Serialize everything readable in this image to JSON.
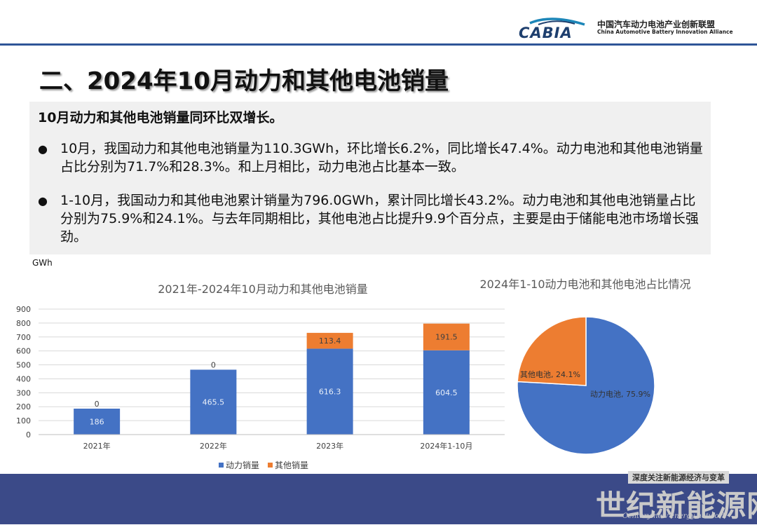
{
  "header": {
    "logo_text": "CABIA",
    "org_name_cn": "中国汽车动力电池产业创新联盟",
    "org_name_en": "China Automotive Battery Innovation Alliance"
  },
  "title": "二、2024年10月动力和其他电池销量",
  "summary": {
    "subtitle": "10月动力和其他电池销量同环比双增长。",
    "bullets": [
      "10月，我国动力和其他电池销量为110.3GWh，环比增长6.2%，同比增长47.4%。动力电池和其他电池销量占比分别为71.7%和28.3%。和上月相比，动力电池占比基本一致。",
      "1-10月，我国动力和其他电池累计销量为796.0GWh，累计同比增长43.2%。动力电池和其他电池销量占比分别为75.9%和24.1%。与去年同期相比，其他电池占比提升9.9个百分点，主要是由于储能电池市场增长强劲。"
    ]
  },
  "unit_label": "GWh",
  "chart_data": [
    {
      "type": "bar",
      "stacked": true,
      "title": "2021年-2024年10月动力和其他电池销量",
      "categories": [
        "2021年",
        "2022年",
        "2023年",
        "2024年1-10月"
      ],
      "series": [
        {
          "name": "动力销量",
          "values": [
            186,
            465.5,
            616.3,
            604.5
          ],
          "color": "#4472c4"
        },
        {
          "name": "其他销量",
          "values": [
            0,
            0,
            113.4,
            191.5
          ],
          "color": "#ed7d31"
        }
      ],
      "value_labels": [
        [
          "186",
          "465.5",
          "616.3",
          "604.5"
        ],
        [
          "0",
          "0",
          "113.4",
          "191.5"
        ]
      ],
      "ylabel": "GWh",
      "ylim": [
        0,
        900
      ],
      "yticks": [
        "0",
        "100",
        "200",
        "300",
        "400",
        "500",
        "600",
        "700",
        "800",
        "900"
      ],
      "grid": true,
      "legend": "bottom"
    },
    {
      "type": "pie",
      "title": "2024年1-10动力电池和其他电池占比情况",
      "slices": [
        {
          "name": "动力电池",
          "value": 75.9,
          "label": "动力电池, 75.9%",
          "color": "#4472c4"
        },
        {
          "name": "其他电池",
          "value": 24.1,
          "label": "其他电池, 24.1%",
          "color": "#ed7d31"
        }
      ]
    }
  ],
  "watermark": {
    "tag": "深度关注新能源经济与变革",
    "name": "世纪新能源网",
    "name_en": "Century new energy network"
  },
  "colors": {
    "header_line": "#2f5597",
    "bottom_band": "#3b4a88",
    "logo_blue": "#1c86b8",
    "logo_dark": "#1e3f6e"
  }
}
